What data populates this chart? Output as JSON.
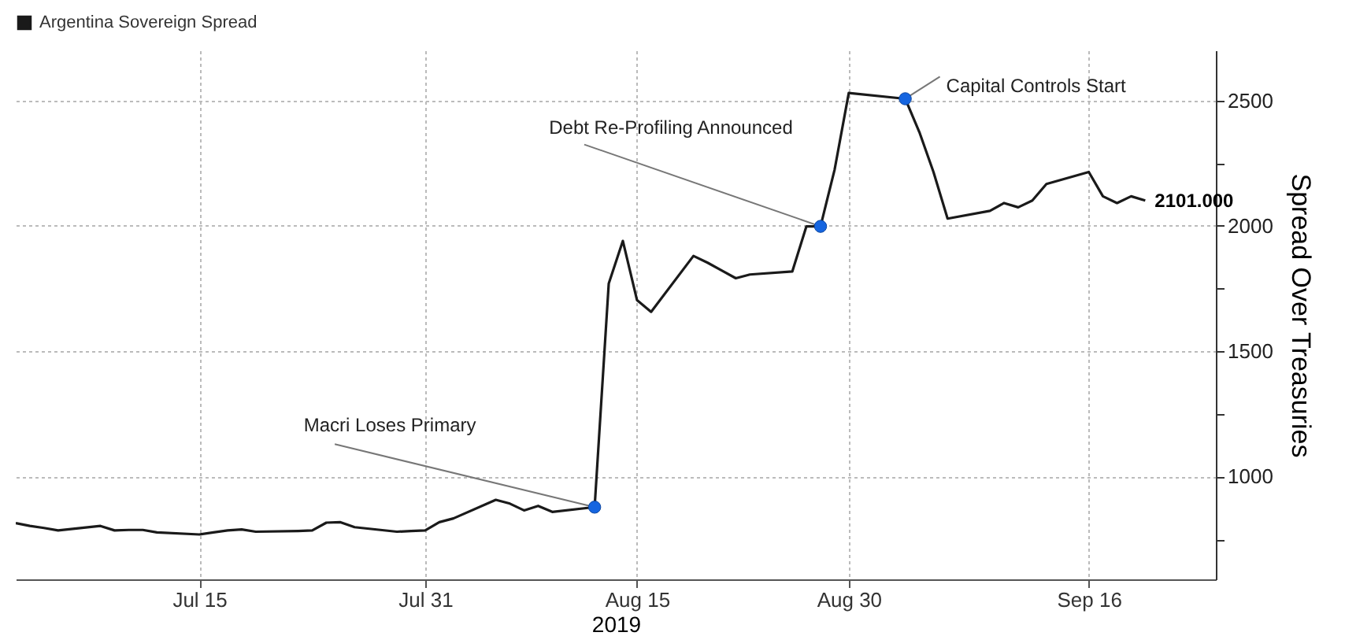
{
  "chart_data": {
    "type": "line",
    "xlabel": "2019",
    "ylabel": "Spread Over Treasuries",
    "legend": "top left",
    "grid": true,
    "line_style": "solid",
    "marker": "none",
    "xlim": [
      "2019-07-02",
      "2019-09-25"
    ],
    "xticks": [
      {
        "value": "2019-07-15",
        "label": "Jul 15"
      },
      {
        "value": "2019-07-31",
        "label": "Jul 31"
      },
      {
        "value": "2019-08-15",
        "label": "Aug 15"
      },
      {
        "value": "2019-08-30",
        "label": "Aug 30"
      },
      {
        "value": "2019-09-16",
        "label": "Sep 16"
      }
    ],
    "ylim": [
      590,
      2700
    ],
    "yticks": [
      {
        "value": 750,
        "label": null
      },
      1000,
      {
        "value": 1250,
        "label": null
      },
      1500,
      {
        "value": 1750,
        "label": null
      },
      2000,
      {
        "value": 2250,
        "label": null
      },
      2500
    ],
    "x": [
      "2019-07-02",
      "2019-07-03",
      "2019-07-04",
      "2019-07-05",
      "2019-07-08",
      "2019-07-09",
      "2019-07-10",
      "2019-07-11",
      "2019-07-12",
      "2019-07-15",
      "2019-07-16",
      "2019-07-17",
      "2019-07-18",
      "2019-07-19",
      "2019-07-22",
      "2019-07-23",
      "2019-07-24",
      "2019-07-25",
      "2019-07-26",
      "2019-07-29",
      "2019-07-30",
      "2019-07-31",
      "2019-08-01",
      "2019-08-02",
      "2019-08-05",
      "2019-08-06",
      "2019-08-07",
      "2019-08-08",
      "2019-08-09",
      "2019-08-12",
      "2019-08-13",
      "2019-08-14",
      "2019-08-15",
      "2019-08-16",
      "2019-08-19",
      "2019-08-20",
      "2019-08-21",
      "2019-08-22",
      "2019-08-23",
      "2019-08-26",
      "2019-08-27",
      "2019-08-28",
      "2019-08-29",
      "2019-08-30",
      "2019-09-03",
      "2019-09-04",
      "2019-09-05",
      "2019-09-06",
      "2019-09-09",
      "2019-09-10",
      "2019-09-11",
      "2019-09-12",
      "2019-09-13",
      "2019-09-16",
      "2019-09-17",
      "2019-09-18",
      "2019-09-19",
      "2019-09-20"
    ],
    "series": [
      {
        "name": "Argentina Sovereign Spread",
        "color": "#1a1a1a",
        "values": [
          814,
          803,
          795,
          785,
          803,
          785,
          787,
          787,
          777,
          769,
          777,
          785,
          789,
          780,
          783,
          785,
          816,
          818,
          798,
          780,
          783,
          785,
          818,
          833,
          907,
          892,
          865,
          883,
          859,
          878,
          1770,
          1940,
          1704,
          1657,
          1880,
          1853,
          1822,
          1791,
          1806,
          1818,
          1998,
          1998,
          2225,
          2530,
          2507,
          2374,
          2215,
          2029,
          2060,
          2091,
          2074,
          2101,
          2167,
          2215,
          2118,
          2091,
          2118,
          2101
        ],
        "value_labels": [
          null,
          null,
          null,
          null,
          null,
          null,
          null,
          null,
          null,
          null,
          null,
          null,
          null,
          null,
          null,
          null,
          null,
          null,
          null,
          null,
          null,
          null,
          null,
          null,
          null,
          null,
          null,
          null,
          null,
          null,
          null,
          null,
          null,
          null,
          null,
          null,
          null,
          null,
          null,
          null,
          null,
          null,
          null,
          null,
          null,
          null,
          null,
          null,
          null,
          null,
          null,
          null,
          null,
          null,
          null,
          null,
          null,
          "2101.000"
        ]
      }
    ],
    "annotations": [
      {
        "text": "Macri Loses Primary",
        "x": "2019-08-12",
        "y": 878
      },
      {
        "text": "Debt Re-Profiling Announced",
        "x": "2019-08-28",
        "y": 1998
      },
      {
        "text": "Capital Controls Start",
        "x": "2019-09-03",
        "y": 2507
      }
    ]
  }
}
